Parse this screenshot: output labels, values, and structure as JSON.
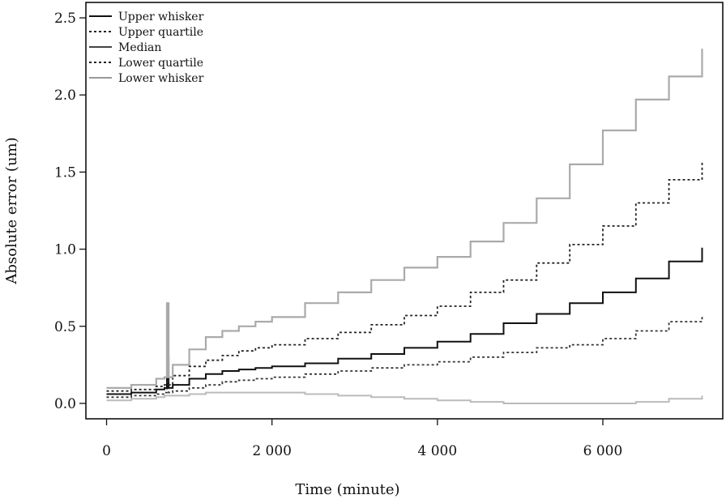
{
  "chart_data": {
    "type": "line",
    "xlabel": "Time (minute)",
    "ylabel": "Absolute error (um)",
    "xlim": [
      -250,
      7450
    ],
    "ylim": [
      -0.1,
      2.6
    ],
    "x_ticks": [
      0,
      2000,
      4000,
      6000
    ],
    "x_tick_labels": [
      "0",
      "2 000",
      "4 000",
      "6 000"
    ],
    "y_ticks": [
      0.0,
      0.5,
      1.0,
      1.5,
      2.0,
      2.5
    ],
    "y_tick_labels": [
      "0.0",
      "0.5",
      "1.0",
      "1.5",
      "2.0",
      "2.5"
    ],
    "grid": false,
    "legend_position": "top-left",
    "series": [
      {
        "name": "Upper whisker",
        "color": "#aaaaaa",
        "dash": "",
        "width": 2.2,
        "x": [
          0,
          300,
          600,
          700,
          730,
          750,
          800,
          1000,
          1200,
          1400,
          1600,
          1800,
          2000,
          2400,
          2800,
          3200,
          3600,
          4000,
          4400,
          4800,
          5200,
          5600,
          6000,
          6400,
          6800,
          7200
        ],
        "y": [
          0.1,
          0.12,
          0.16,
          0.17,
          0.65,
          0.17,
          0.25,
          0.35,
          0.43,
          0.47,
          0.5,
          0.53,
          0.56,
          0.65,
          0.72,
          0.8,
          0.88,
          0.95,
          1.05,
          1.17,
          1.33,
          1.55,
          1.77,
          1.97,
          2.12,
          2.3
        ]
      },
      {
        "name": "Upper quartile",
        "color": "#222222",
        "dash": "3,3",
        "width": 1.8,
        "x": [
          0,
          300,
          600,
          700,
          730,
          750,
          800,
          1000,
          1200,
          1400,
          1600,
          1800,
          2000,
          2400,
          2800,
          3200,
          3600,
          4000,
          4400,
          4800,
          5200,
          5600,
          6000,
          6400,
          6800,
          7200
        ],
        "y": [
          0.08,
          0.09,
          0.11,
          0.12,
          0.42,
          0.12,
          0.18,
          0.24,
          0.28,
          0.31,
          0.34,
          0.36,
          0.38,
          0.42,
          0.46,
          0.51,
          0.57,
          0.63,
          0.72,
          0.8,
          0.91,
          1.03,
          1.15,
          1.3,
          1.45,
          1.57
        ]
      },
      {
        "name": "Median",
        "color": "#111111",
        "dash": "",
        "width": 2.0,
        "x": [
          0,
          300,
          600,
          700,
          730,
          750,
          800,
          1000,
          1200,
          1400,
          1600,
          1800,
          2000,
          2400,
          2800,
          3200,
          3600,
          4000,
          4400,
          4800,
          5200,
          5600,
          6000,
          6400,
          6800,
          7200
        ],
        "y": [
          0.06,
          0.07,
          0.09,
          0.1,
          0.3,
          0.1,
          0.12,
          0.16,
          0.19,
          0.21,
          0.22,
          0.23,
          0.24,
          0.26,
          0.29,
          0.32,
          0.36,
          0.4,
          0.45,
          0.52,
          0.58,
          0.65,
          0.72,
          0.81,
          0.92,
          1.01
        ]
      },
      {
        "name": "Lower quartile",
        "color": "#333333",
        "dash": "3,3",
        "width": 1.8,
        "x": [
          0,
          300,
          600,
          700,
          730,
          750,
          800,
          1000,
          1200,
          1400,
          1600,
          1800,
          2000,
          2400,
          2800,
          3200,
          3600,
          4000,
          4400,
          4800,
          5200,
          5600,
          6000,
          6400,
          6800,
          7200
        ],
        "y": [
          0.04,
          0.05,
          0.06,
          0.07,
          0.22,
          0.07,
          0.08,
          0.1,
          0.12,
          0.14,
          0.15,
          0.16,
          0.17,
          0.19,
          0.21,
          0.23,
          0.25,
          0.27,
          0.3,
          0.33,
          0.36,
          0.38,
          0.42,
          0.47,
          0.53,
          0.57
        ]
      },
      {
        "name": "Lower whisker",
        "color": "#bbbbbb",
        "dash": "",
        "width": 2.0,
        "x": [
          0,
          300,
          600,
          700,
          800,
          1000,
          1200,
          1400,
          1600,
          1800,
          2000,
          2400,
          2800,
          3200,
          3600,
          4000,
          4400,
          4800,
          5200,
          5600,
          6000,
          6400,
          6800,
          7200
        ],
        "y": [
          0.02,
          0.03,
          0.04,
          0.05,
          0.05,
          0.06,
          0.07,
          0.07,
          0.07,
          0.07,
          0.07,
          0.06,
          0.05,
          0.04,
          0.03,
          0.02,
          0.01,
          0.0,
          0.0,
          0.0,
          0.0,
          0.01,
          0.03,
          0.05
        ]
      }
    ]
  }
}
